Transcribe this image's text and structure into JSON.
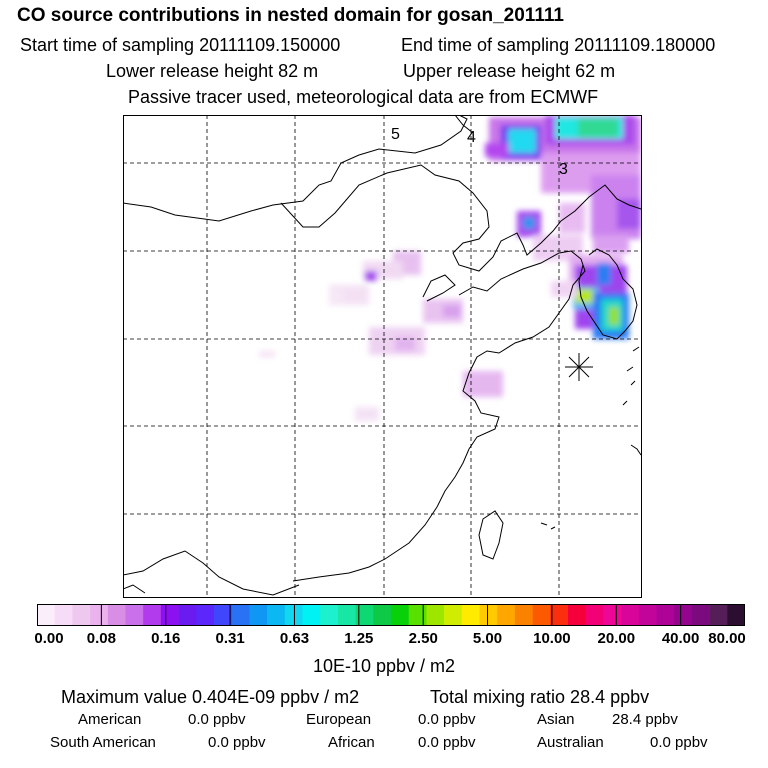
{
  "header": {
    "title": "CO  source contributions in nested domain for gosan_201111",
    "start_label": "Start time of sampling 20111109.150000",
    "end_label": "End time of sampling 20111109.180000",
    "lower_release": "Lower release height   82 m",
    "upper_release": "Upper release height   62 m",
    "tracer_note": "Passive tracer used, meteorological data are from ECMWF"
  },
  "map": {
    "trajectory_labels": [
      "5",
      "4",
      "3"
    ],
    "receptor_marker": "receptor-star"
  },
  "colorbar": {
    "colors": [
      "#fbeefb",
      "#f6dcf6",
      "#efc8ef",
      "#eab3ee",
      "#d98ee6",
      "#cb70eb",
      "#b13bed",
      "#8d10f0",
      "#6a1bf0",
      "#5b27fa",
      "#3f46fb",
      "#2a72f5",
      "#0f97f3",
      "#0db8f2",
      "#11d7f0",
      "#00f2f5",
      "#1cf0cc",
      "#18e6a4",
      "#0dd872",
      "#0ec945",
      "#08d10a",
      "#58e000",
      "#9ee500",
      "#d0ec00",
      "#ffeb00",
      "#ffcb00",
      "#ffa600",
      "#fa8200",
      "#fb5a00",
      "#fb2e10",
      "#f6003b",
      "#f40076",
      "#ee0796",
      "#d9049a",
      "#c3049b",
      "#ad0497",
      "#94048f",
      "#7a0a7e",
      "#551e59",
      "#2c0f30"
    ],
    "ticks": [
      "0.00",
      "0.08",
      "0.16",
      "0.31",
      "0.63",
      "1.25",
      "2.50",
      "5.00",
      "10.00",
      "20.00",
      "40.00",
      "80.00"
    ],
    "units": "10E-10 ppbv / m2"
  },
  "stats": {
    "max_value": "Maximum value  0.404E-09 ppbv / m2",
    "total_mixing": "Total mixing ratio       28.4 ppbv"
  },
  "regions": [
    {
      "name": "American",
      "value": "0.0 ppbv"
    },
    {
      "name": "European",
      "value": "0.0 ppbv"
    },
    {
      "name": "Asian",
      "value": "28.4 ppbv"
    },
    {
      "name": "South American",
      "value": "0.0 ppbv"
    },
    {
      "name": "African",
      "value": "0.0 ppbv"
    },
    {
      "name": "Australian",
      "value": "0.0 ppbv"
    }
  ]
}
